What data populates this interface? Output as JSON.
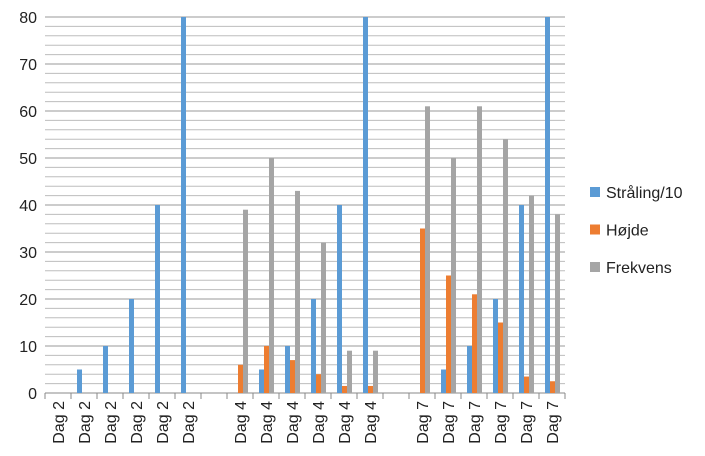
{
  "chart_data": {
    "type": "bar",
    "categories": [
      "Dag 2",
      "Dag 2",
      "Dag 2",
      "Dag 2",
      "Dag 2",
      "Dag 2",
      null,
      "Dag 4",
      "Dag 4",
      "Dag 4",
      "Dag 4",
      "Dag 4",
      "Dag 4",
      null,
      "Dag 7",
      "Dag 7",
      "Dag 7",
      "Dag 7",
      "Dag 7",
      "Dag 7"
    ],
    "series": [
      {
        "name": "Stråling/10",
        "color": "#5b9bd5",
        "values": [
          0,
          5,
          10,
          20,
          40,
          80,
          null,
          null,
          5,
          10,
          20,
          40,
          80,
          null,
          null,
          5,
          10,
          20,
          40,
          80
        ]
      },
      {
        "name": "Højde",
        "color": "#ed7d31",
        "values": [
          null,
          null,
          null,
          null,
          null,
          null,
          null,
          6,
          10,
          7,
          4,
          1.5,
          1.5,
          null,
          35,
          25,
          21,
          15,
          3.5,
          2.5
        ]
      },
      {
        "name": "Frekvens",
        "color": "#a5a5a5",
        "values": [
          null,
          null,
          null,
          null,
          null,
          null,
          null,
          39,
          50,
          43,
          32,
          9,
          9,
          null,
          61,
          50,
          61,
          54,
          42,
          38
        ]
      }
    ],
    "ylim": [
      0,
      80
    ],
    "yticks": [
      0,
      10,
      20,
      30,
      40,
      50,
      60,
      70,
      80
    ],
    "grid": true,
    "minor_grid": 2,
    "legend": "right"
  }
}
